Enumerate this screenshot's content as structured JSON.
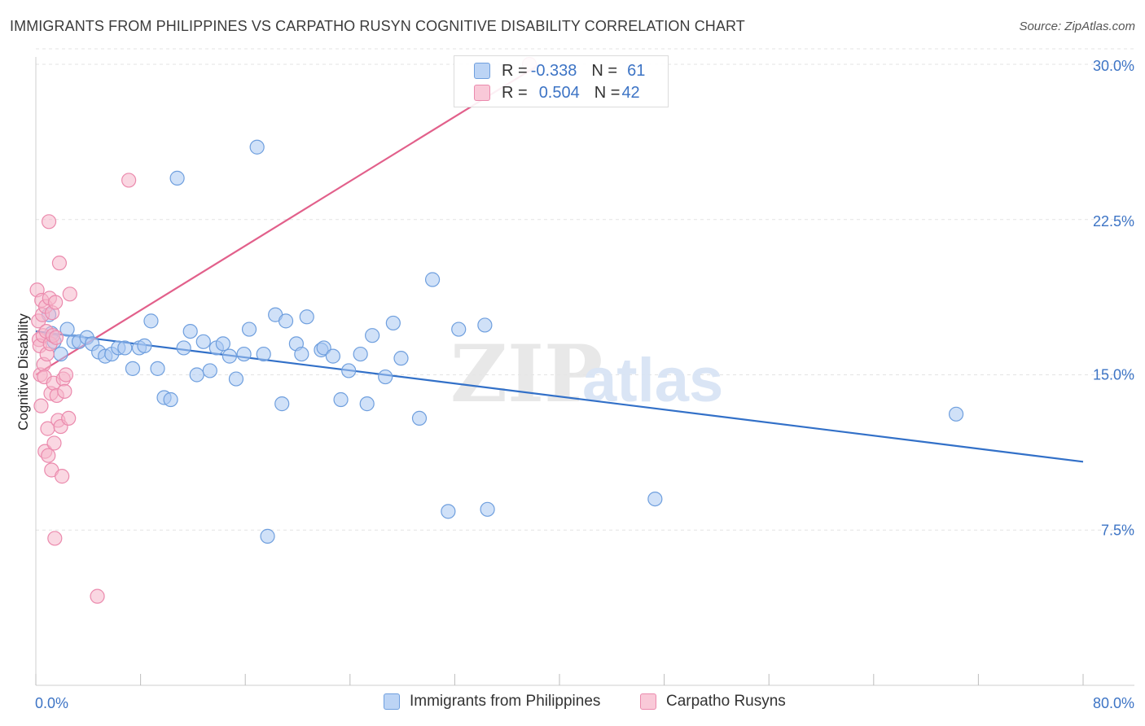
{
  "header": {
    "title": "IMMIGRANTS FROM PHILIPPINES VS CARPATHO RUSYN COGNITIVE DISABILITY CORRELATION CHART",
    "source": "Source: ZipAtlas.com"
  },
  "watermark": {
    "zip": "ZIP",
    "atlas": "atlas"
  },
  "legend": {
    "rows": [
      {
        "r_label": "R = ",
        "r_value": "-0.338",
        "n_label": "N = ",
        "n_value": "61",
        "color": "#a9c8f2"
      },
      {
        "r_label": "R = ",
        "r_value": "0.504",
        "n_label": "N = ",
        "n_value": "42",
        "color": "#f6b6cb"
      }
    ]
  },
  "chart_data": {
    "type": "scatter",
    "title": "IMMIGRANTS FROM PHILIPPINES VS CARPATHO RUSYN COGNITIVE DISABILITY CORRELATION CHART",
    "xlabel": "",
    "ylabel": "Cognitive Disability",
    "xlim": [
      0,
      80
    ],
    "ylim": [
      0,
      31
    ],
    "x_tick_labels": [
      "0.0%",
      "80.0%"
    ],
    "y_ticks": [
      7.5,
      15.0,
      22.5,
      30.0
    ],
    "y_tick_labels": [
      "7.5%",
      "15.0%",
      "22.5%",
      "30.0%"
    ],
    "grid": true,
    "legend_placement": "bottom",
    "series": [
      {
        "name": "Immigrants from Philippines",
        "color": "#a9c8f2",
        "stroke": "#6f9fde",
        "trend": {
          "x": [
            0,
            80
          ],
          "y": [
            17.1,
            10.8
          ],
          "color": "#3270c8"
        },
        "points": [
          [
            1.0,
            17.9
          ],
          [
            1.2,
            17.0
          ],
          [
            1.4,
            16.6
          ],
          [
            1.9,
            16.0
          ],
          [
            2.4,
            17.2
          ],
          [
            2.9,
            16.6
          ],
          [
            3.3,
            16.6
          ],
          [
            3.9,
            16.8
          ],
          [
            4.3,
            16.5
          ],
          [
            4.8,
            16.1
          ],
          [
            5.3,
            15.9
          ],
          [
            5.8,
            16.0
          ],
          [
            6.3,
            16.3
          ],
          [
            6.8,
            16.3
          ],
          [
            7.4,
            15.3
          ],
          [
            7.9,
            16.3
          ],
          [
            8.3,
            16.4
          ],
          [
            8.8,
            17.6
          ],
          [
            9.3,
            15.3
          ],
          [
            9.8,
            13.9
          ],
          [
            10.3,
            13.8
          ],
          [
            10.8,
            24.5
          ],
          [
            11.3,
            16.3
          ],
          [
            11.8,
            17.1
          ],
          [
            12.3,
            15.0
          ],
          [
            12.8,
            16.6
          ],
          [
            13.3,
            15.2
          ],
          [
            13.8,
            16.3
          ],
          [
            14.3,
            16.5
          ],
          [
            14.8,
            15.9
          ],
          [
            15.3,
            14.8
          ],
          [
            15.9,
            16.0
          ],
          [
            16.3,
            17.2
          ],
          [
            16.9,
            26.0
          ],
          [
            17.4,
            16.0
          ],
          [
            17.7,
            7.2
          ],
          [
            18.3,
            17.9
          ],
          [
            18.8,
            13.6
          ],
          [
            19.1,
            17.6
          ],
          [
            19.9,
            16.5
          ],
          [
            20.3,
            16.0
          ],
          [
            20.7,
            17.8
          ],
          [
            21.8,
            16.2
          ],
          [
            22.0,
            16.3
          ],
          [
            22.7,
            15.9
          ],
          [
            23.3,
            13.8
          ],
          [
            23.9,
            15.2
          ],
          [
            24.8,
            16.0
          ],
          [
            25.3,
            13.6
          ],
          [
            25.7,
            16.9
          ],
          [
            26.7,
            14.9
          ],
          [
            27.3,
            17.5
          ],
          [
            27.9,
            15.8
          ],
          [
            29.3,
            12.9
          ],
          [
            30.3,
            19.6
          ],
          [
            31.5,
            8.4
          ],
          [
            32.3,
            17.2
          ],
          [
            34.3,
            17.4
          ],
          [
            34.5,
            8.5
          ],
          [
            47.3,
            9.0
          ],
          [
            70.3,
            13.1
          ]
        ]
      },
      {
        "name": "Carpatho Rusyns",
        "color": "#f6b6cb",
        "stroke": "#eb8aad",
        "trend": {
          "x": [
            0,
            38.5
          ],
          "y": [
            15.0,
            30.0
          ],
          "color": "#e2608b"
        },
        "points": [
          [
            0.1,
            19.1
          ],
          [
            0.2,
            17.6
          ],
          [
            0.25,
            16.7
          ],
          [
            0.3,
            16.4
          ],
          [
            0.35,
            15.0
          ],
          [
            0.4,
            13.5
          ],
          [
            0.45,
            18.6
          ],
          [
            0.5,
            17.9
          ],
          [
            0.55,
            16.9
          ],
          [
            0.6,
            15.5
          ],
          [
            0.65,
            14.9
          ],
          [
            0.7,
            11.3
          ],
          [
            0.75,
            18.3
          ],
          [
            0.8,
            17.1
          ],
          [
            0.85,
            16.0
          ],
          [
            0.9,
            12.4
          ],
          [
            0.95,
            11.1
          ],
          [
            1.0,
            22.4
          ],
          [
            1.05,
            18.7
          ],
          [
            1.1,
            16.5
          ],
          [
            1.15,
            14.1
          ],
          [
            1.2,
            10.4
          ],
          [
            1.25,
            18.0
          ],
          [
            1.3,
            16.9
          ],
          [
            1.35,
            14.6
          ],
          [
            1.4,
            11.7
          ],
          [
            1.45,
            7.1
          ],
          [
            1.5,
            18.5
          ],
          [
            1.55,
            16.8
          ],
          [
            1.6,
            14.0
          ],
          [
            1.7,
            12.8
          ],
          [
            1.8,
            20.4
          ],
          [
            1.9,
            12.5
          ],
          [
            2.0,
            10.1
          ],
          [
            2.1,
            14.8
          ],
          [
            2.2,
            14.2
          ],
          [
            2.3,
            15.0
          ],
          [
            2.5,
            12.9
          ],
          [
            2.6,
            18.9
          ],
          [
            4.7,
            4.3
          ],
          [
            7.1,
            24.4
          ],
          [
            37.7,
            30.0
          ]
        ]
      }
    ]
  },
  "bottom_legend": [
    {
      "label": "Immigrants from Philippines"
    },
    {
      "label": "Carpatho Rusyns"
    }
  ]
}
